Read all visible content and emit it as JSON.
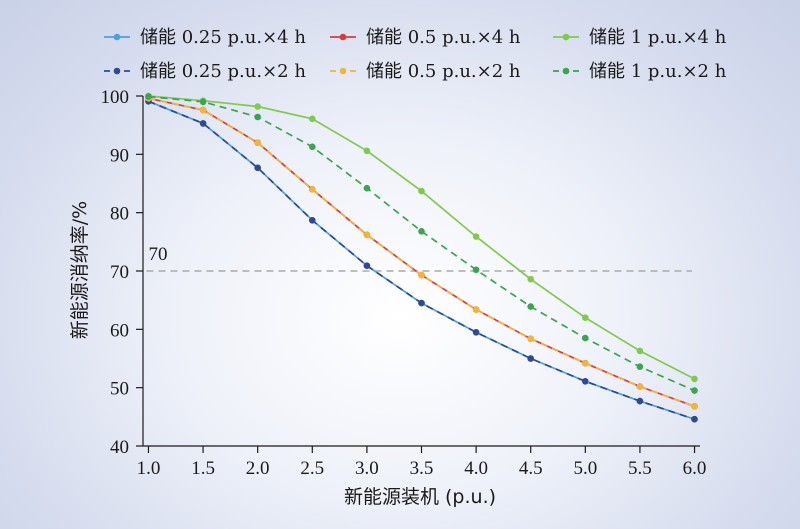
{
  "chart_data": {
    "type": "line",
    "xlabel": "新能源装机 (p.u.)",
    "ylabel": "新能源消纳率/%",
    "x": [
      1.0,
      1.5,
      2.0,
      2.5,
      3.0,
      3.5,
      4.0,
      4.5,
      5.0,
      5.5,
      6.0
    ],
    "x_tick_labels": [
      "1.0",
      "1.5",
      "2.0",
      "2.5",
      "3.0",
      "3.5",
      "4.0",
      "4.5",
      "5.0",
      "5.5",
      "6.0"
    ],
    "xlim": [
      0.95,
      6.05
    ],
    "y_ticks": [
      40,
      50,
      60,
      70,
      80,
      90,
      100
    ],
    "ylim": [
      40,
      100
    ],
    "grid": false,
    "legend_position": "top",
    "reference_line": {
      "y": 70,
      "label": "70",
      "color": "#aaaaaa"
    },
    "series": [
      {
        "name": "储能 0.25 p.u.×4 h",
        "color": "#4aa3d8",
        "dash": "solid",
        "values": [
          99.1,
          95.3,
          87.7,
          78.7,
          70.9,
          64.5,
          59.5,
          55.0,
          51.1,
          47.7,
          44.6
        ]
      },
      {
        "name": "储能 0.5 p.u.×4 h",
        "color": "#d93a3a",
        "dash": "solid",
        "values": [
          99.6,
          97.6,
          92.0,
          84.0,
          76.2,
          69.3,
          63.4,
          58.4,
          54.2,
          50.2,
          46.8
        ]
      },
      {
        "name": "储能 1 p.u.×4 h",
        "color": "#7ecb4c",
        "dash": "solid",
        "values": [
          100.0,
          99.2,
          98.2,
          96.1,
          90.6,
          83.7,
          75.9,
          68.6,
          62.0,
          56.3,
          51.5
        ]
      },
      {
        "name": "储能 0.25 p.u.×2 h",
        "color": "#2f4a8f",
        "dash": "dashed",
        "values": [
          99.1,
          95.3,
          87.7,
          78.7,
          70.9,
          64.5,
          59.5,
          55.0,
          51.1,
          47.7,
          44.6
        ]
      },
      {
        "name": "储能 0.5 p.u.×2 h",
        "color": "#f0b53a",
        "dash": "dashed",
        "values": [
          99.6,
          97.6,
          92.0,
          84.0,
          76.2,
          69.3,
          63.4,
          58.4,
          54.2,
          50.2,
          46.8
        ]
      },
      {
        "name": "储能 1 p.u.×2 h",
        "color": "#3aa44e",
        "dash": "dashed",
        "values": [
          99.9,
          99.0,
          96.4,
          91.3,
          84.2,
          76.8,
          70.2,
          63.9,
          58.5,
          53.6,
          49.5
        ]
      }
    ]
  }
}
